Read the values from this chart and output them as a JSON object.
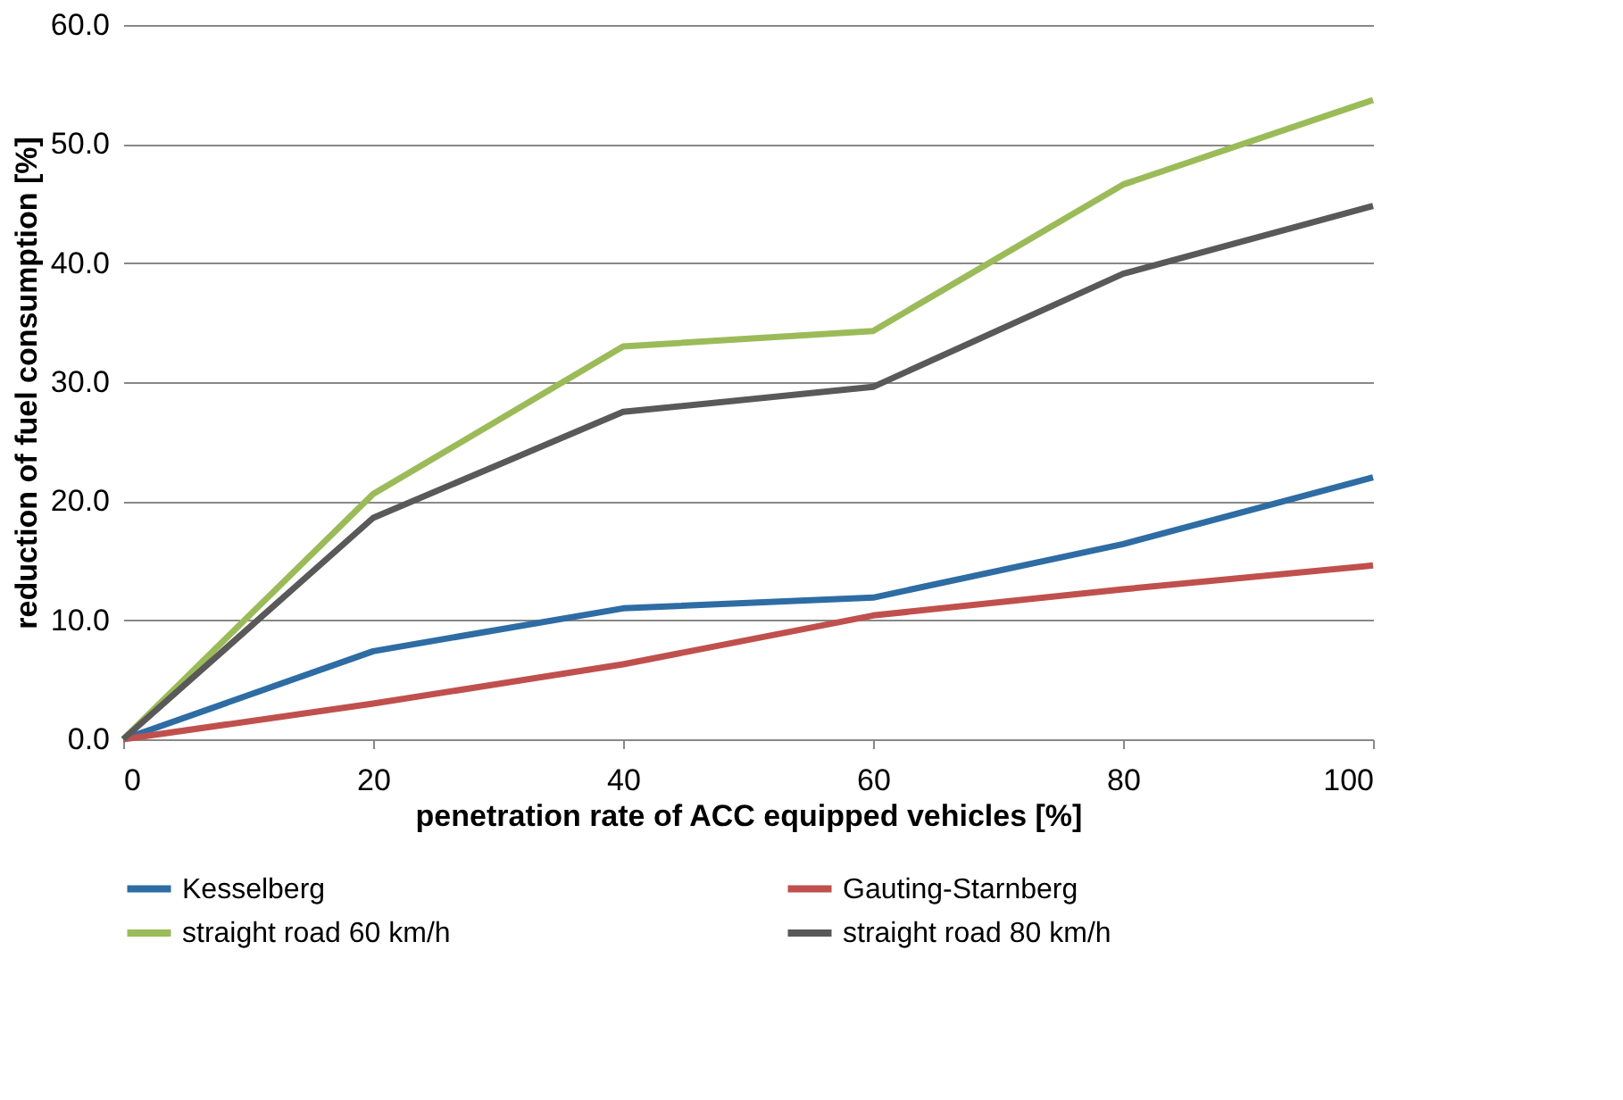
{
  "chart_data": {
    "type": "line",
    "xlabel": "penetration rate of  ACC equipped vehicles [%]",
    "ylabel": "reduction of fuel consumption [%]",
    "x": [
      0,
      20,
      40,
      60,
      80,
      100
    ],
    "series": [
      {
        "name": "Kesselberg",
        "color": "#2e6ca4",
        "values": [
          0,
          7.4,
          11.0,
          11.9,
          16.4,
          22.0
        ]
      },
      {
        "name": "Gauting-Starnberg",
        "color": "#c0504d",
        "values": [
          0,
          3.0,
          6.3,
          10.4,
          12.6,
          14.6
        ]
      },
      {
        "name": "straight road 60 km/h",
        "color": "#9bbb59",
        "values": [
          0,
          20.6,
          33.0,
          34.3,
          46.6,
          53.7
        ]
      },
      {
        "name": "straight road 80 km/h",
        "color": "#595959",
        "values": [
          0,
          18.6,
          27.5,
          29.6,
          39.1,
          44.8
        ]
      }
    ],
    "xlim": [
      0,
      100
    ],
    "xticks": [
      0,
      20,
      40,
      60,
      80,
      100
    ],
    "ylim": [
      0,
      60
    ],
    "yticks": [
      {
        "value": 0,
        "label": "0.0"
      },
      {
        "value": 10,
        "label": "10.0"
      },
      {
        "value": 20,
        "label": "20.0"
      },
      {
        "value": 30,
        "label": "30.0"
      },
      {
        "value": 40,
        "label": "40.0"
      },
      {
        "value": 50,
        "label": "50.0"
      },
      {
        "value": 60,
        "label": "60.0"
      }
    ],
    "grid": "y",
    "legend": "bottom",
    "marker": "none",
    "line_style": "solid"
  }
}
